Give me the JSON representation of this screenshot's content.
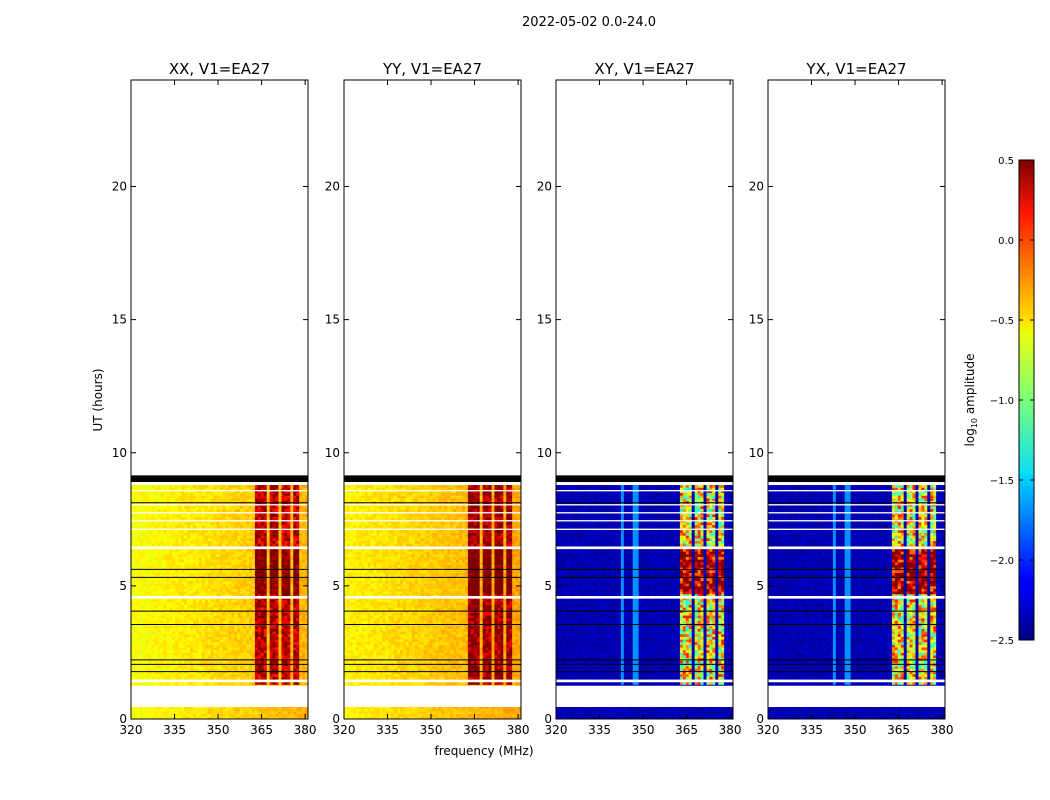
{
  "figure": {
    "suptitle": "2022-05-02 0.0-24.0",
    "ylabel": "UT (hours)",
    "xlabel": "frequency (MHz)"
  },
  "chart_data": {
    "type": "heatmap",
    "title": "2022-05-02 0.0-24.0",
    "xlabel": "frequency (MHz)",
    "ylabel": "UT (hours)",
    "xlim": [
      320,
      381
    ],
    "ylim": [
      0,
      24
    ],
    "xticks": [
      320,
      335,
      350,
      365,
      380
    ],
    "yticks": [
      0,
      5,
      10,
      15,
      20
    ],
    "data_time_range_hours": [
      0.0,
      9.0
    ],
    "no_data_band_hours": [
      [
        0.45,
        1.25
      ]
    ],
    "colorbar": {
      "label": "log10 amplitude",
      "label_main": "log",
      "label_sub": "10",
      "label_rest": " amplitude",
      "range": [
        -2.5,
        0.5
      ],
      "ticks": [
        "0.5",
        "0.0",
        "−0.5",
        "−1.0",
        "−1.5",
        "−2.0",
        "−2.5"
      ],
      "tick_values": [
        0.5,
        0.0,
        -0.5,
        -1.0,
        -1.5,
        -2.0,
        -2.5
      ],
      "colormap": "jet"
    },
    "panels": [
      {
        "title": "XX, V1=EA27",
        "pol": "XX",
        "base_level": -0.55,
        "band_level": 0.2
      },
      {
        "title": "YY, V1=EA27",
        "pol": "YY",
        "base_level": -0.5,
        "band_level": 0.3
      },
      {
        "title": "XY, V1=EA27",
        "pol": "XY",
        "base_level": -2.35,
        "band_level": -0.9
      },
      {
        "title": "YX, V1=EA27",
        "pol": "YX",
        "base_level": -2.35,
        "band_level": -0.9
      }
    ],
    "rfi_band_mhz": [
      [
        362.5,
        366.5
      ],
      [
        367.5,
        370.5
      ],
      [
        371.5,
        374.5
      ],
      [
        375.5,
        378.0
      ]
    ]
  },
  "colors": {
    "jet_dark_red": "#7f0000",
    "jet_dark_blue": "#00007f",
    "axis": "#000000",
    "background": "#ffffff"
  }
}
